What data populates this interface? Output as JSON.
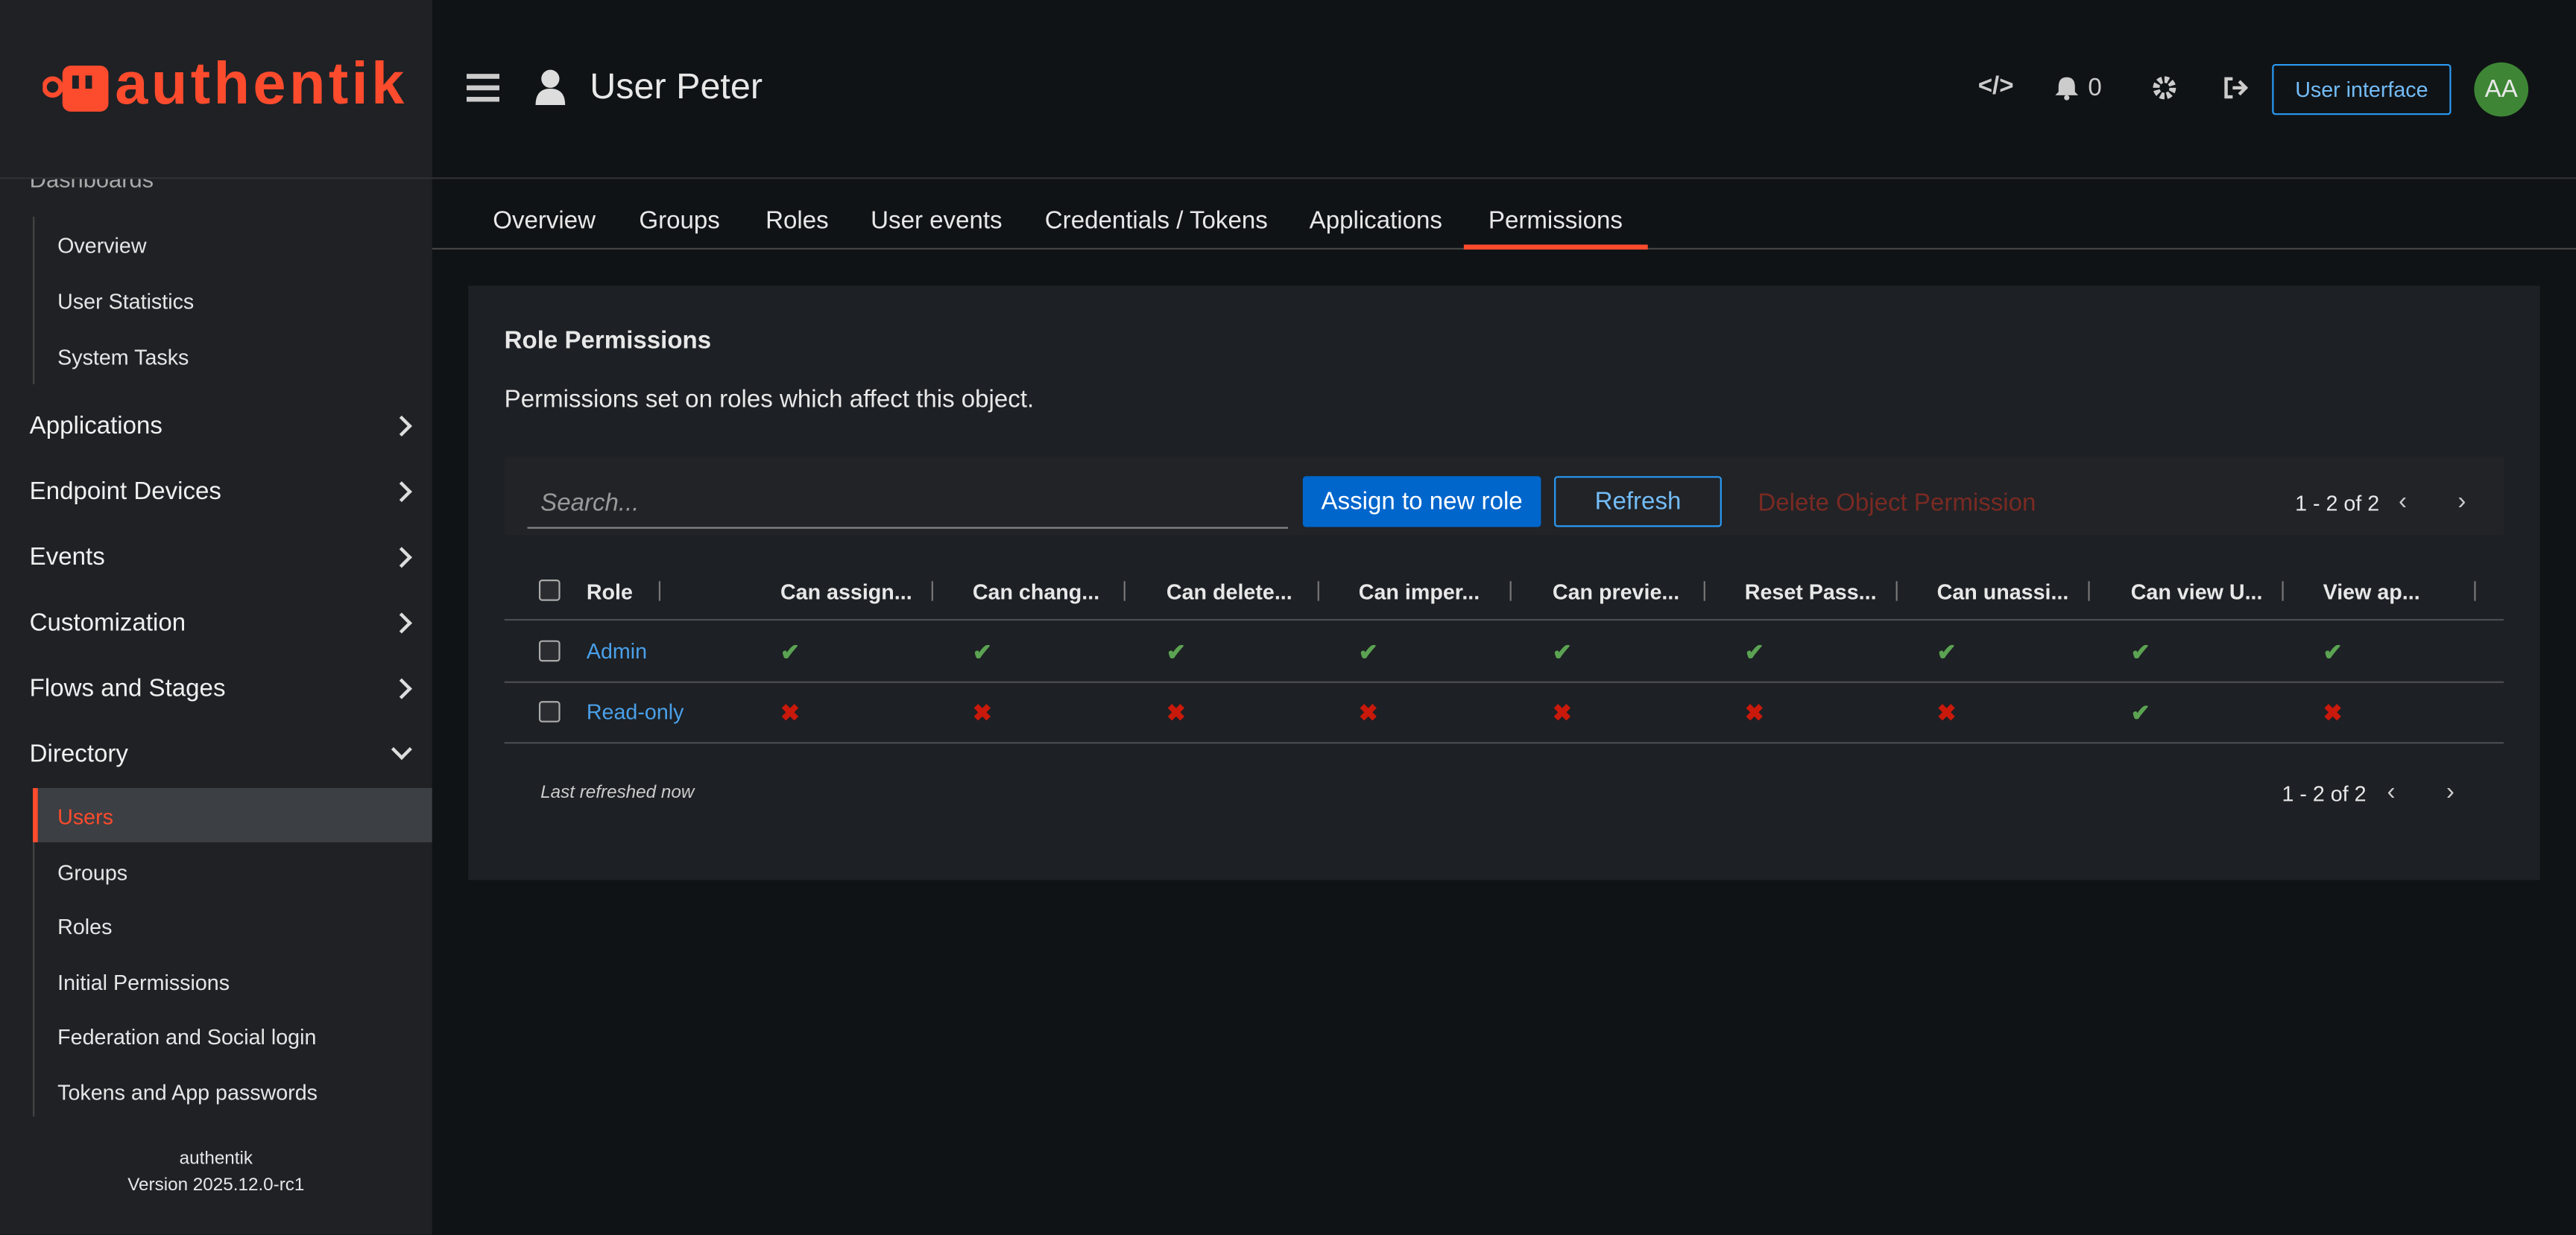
{
  "sidebar": {
    "brand": "authentik",
    "hidden_section": "Dashboards",
    "dashboard_items": [
      "Overview",
      "User Statistics",
      "System Tasks"
    ],
    "sections": [
      "Applications",
      "Endpoint Devices",
      "Events",
      "Customization",
      "Flows and Stages"
    ],
    "open_section": "Directory",
    "directory_items": [
      "Users",
      "Groups",
      "Roles",
      "Initial Permissions",
      "Federation and Social login",
      "Tokens and App passwords"
    ],
    "active_item": 0,
    "footer": {
      "name": "authentik",
      "version": "Version 2025.12.0-rc1"
    }
  },
  "header": {
    "title": "User Peter",
    "notifications": "0",
    "user_interface": "User interface",
    "avatar": "AA"
  },
  "tabs": {
    "items": [
      "Overview",
      "Groups",
      "Roles",
      "User events",
      "Credentials / Tokens",
      "Applications",
      "Permissions"
    ],
    "active": 6
  },
  "card": {
    "title": "Role Permissions",
    "description": "Permissions set on roles which affect this object.",
    "search_placeholder": "Search...",
    "assign": "Assign to new role",
    "refresh": "Refresh",
    "delete": "Delete Object Permission",
    "pagination": "1 - 2 of 2",
    "footer": "Last refreshed now",
    "table": {
      "columns": [
        "Role",
        "Can assign...",
        "Can chang...",
        "Can delete...",
        "Can imper...",
        "Can previe...",
        "Reset Pass...",
        "Can unassi...",
        "Can view U...",
        "View ap..."
      ],
      "rows": [
        {
          "role": "Admin",
          "permissions": [
            true,
            true,
            true,
            true,
            true,
            true,
            true,
            true,
            true
          ]
        },
        {
          "role": "Read-only",
          "permissions": [
            false,
            false,
            false,
            false,
            false,
            false,
            false,
            true,
            false
          ]
        }
      ]
    }
  }
}
